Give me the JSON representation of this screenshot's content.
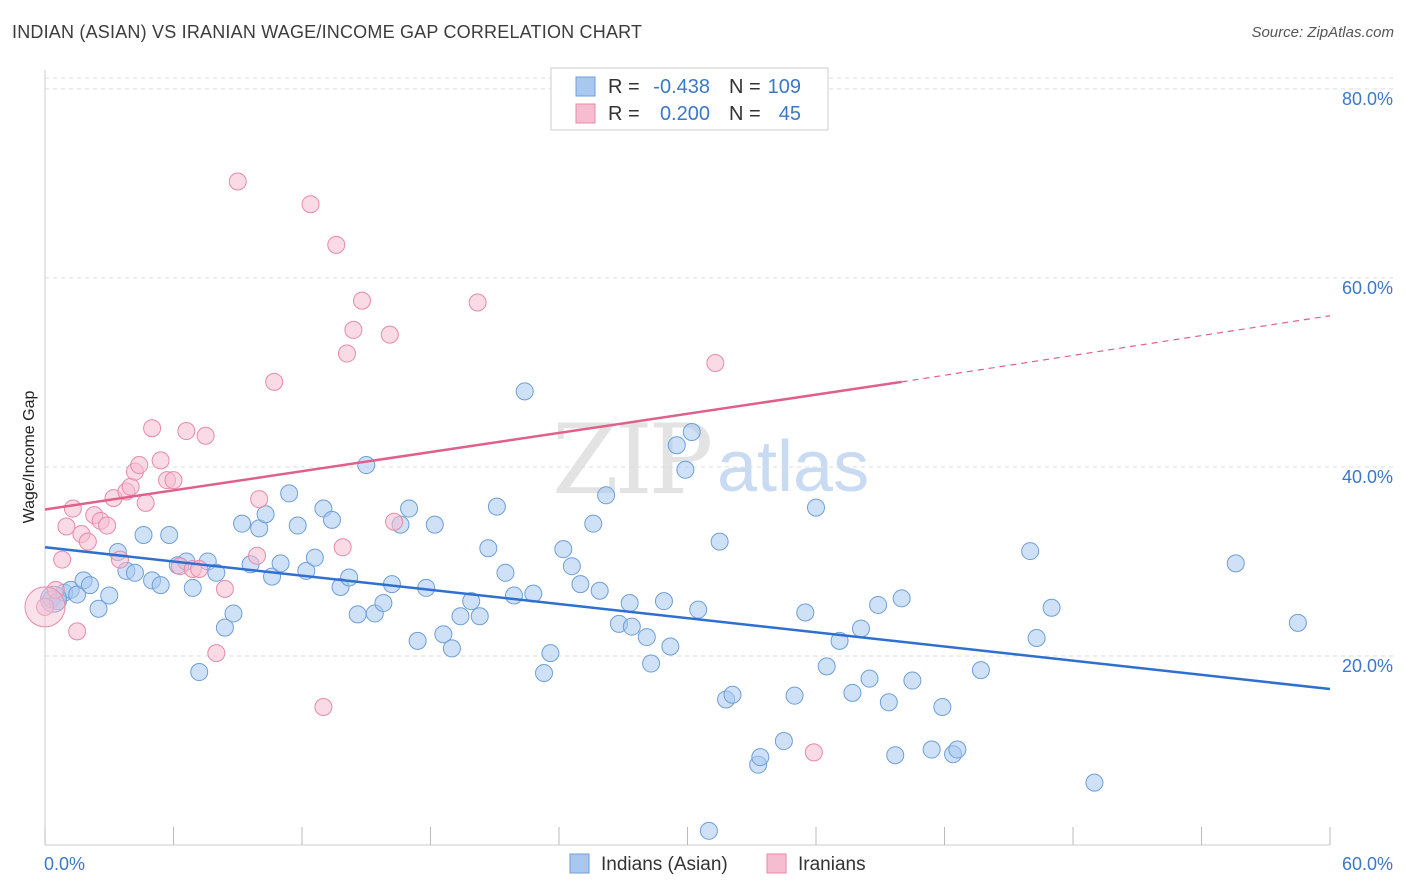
{
  "title": "INDIAN (ASIAN) VS IRANIAN WAGE/INCOME GAP CORRELATION CHART",
  "source": "Source: ZipAtlas.com",
  "watermark": {
    "zip": "ZIP",
    "atlas": "atlas"
  },
  "colors": {
    "blue_fill": "#a8c8f0",
    "blue_stroke": "#6e9fd8",
    "blue_line": "#2e6fd0",
    "pink_fill": "#f6bcd0",
    "pink_stroke": "#e88aa8",
    "pink_line": "#e0608a",
    "tick_text": "#3b78c8",
    "grid": "#dddddd"
  },
  "legend_top": {
    "rows": [
      {
        "r_label": "R =",
        "r_value": "-0.438",
        "n_label": "N =",
        "n_value": "109"
      },
      {
        "r_label": "R =",
        "r_value": "0.200",
        "n_label": "N =",
        "n_value": "45"
      }
    ]
  },
  "chart_data": {
    "type": "scatter",
    "xlabel": "",
    "ylabel": "Wage/Income Gap",
    "xlim": [
      0,
      60
    ],
    "ylim": [
      0,
      82
    ],
    "x_tick_labels": [
      "0.0%",
      "60.0%"
    ],
    "y_ticks": [
      20,
      40,
      60,
      80
    ],
    "y_tick_labels": [
      "20.0%",
      "40.0%",
      "60.0%",
      "80.0%"
    ],
    "grid": "horizontal dashed",
    "legend_position": "top-center",
    "series": [
      {
        "name": "Indians (Asian)",
        "color": "blue",
        "trend": {
          "x0": 0,
          "y0": 31.5,
          "x1": 60,
          "y1": 16.5
        },
        "points": [
          [
            0.3,
            26
          ],
          [
            0.6,
            25.8
          ],
          [
            0.9,
            26.7
          ],
          [
            1.2,
            27
          ],
          [
            1.5,
            26.5
          ],
          [
            1.8,
            28
          ],
          [
            2.1,
            27.5
          ],
          [
            2.5,
            25
          ],
          [
            3,
            26.4
          ],
          [
            3.4,
            31
          ],
          [
            3.8,
            29
          ],
          [
            4.2,
            28.8
          ],
          [
            4.6,
            32.8
          ],
          [
            5,
            28
          ],
          [
            5.4,
            27.5
          ],
          [
            5.8,
            32.8
          ],
          [
            6.2,
            29.6
          ],
          [
            6.6,
            30
          ],
          [
            6.9,
            27.2
          ],
          [
            7.2,
            18.3
          ],
          [
            7.6,
            30
          ],
          [
            8,
            28.8
          ],
          [
            8.4,
            23
          ],
          [
            8.8,
            24.5
          ],
          [
            9.2,
            34
          ],
          [
            9.6,
            29.7
          ],
          [
            10,
            33.5
          ],
          [
            10.3,
            35
          ],
          [
            10.6,
            28.4
          ],
          [
            11,
            29.8
          ],
          [
            11.4,
            37.2
          ],
          [
            11.8,
            33.8
          ],
          [
            12.2,
            29
          ],
          [
            12.6,
            30.4
          ],
          [
            13,
            35.6
          ],
          [
            13.4,
            34.4
          ],
          [
            13.8,
            27.3
          ],
          [
            14.2,
            28.3
          ],
          [
            14.6,
            24.4
          ],
          [
            15,
            40.2
          ],
          [
            15.4,
            24.5
          ],
          [
            15.8,
            25.6
          ],
          [
            16.2,
            27.6
          ],
          [
            16.6,
            33.9
          ],
          [
            17,
            35.6
          ],
          [
            17.4,
            21.6
          ],
          [
            17.8,
            27.2
          ],
          [
            18.2,
            33.9
          ],
          [
            18.6,
            22.3
          ],
          [
            19,
            20.8
          ],
          [
            19.4,
            24.2
          ],
          [
            19.9,
            25.8
          ],
          [
            20.3,
            24.2
          ],
          [
            20.7,
            31.4
          ],
          [
            21.1,
            35.8
          ],
          [
            21.5,
            28.8
          ],
          [
            21.9,
            26.4
          ],
          [
            22.4,
            48
          ],
          [
            22.8,
            26.6
          ],
          [
            23.3,
            18.2
          ],
          [
            23.6,
            20.3
          ],
          [
            24.2,
            31.3
          ],
          [
            24.6,
            29.5
          ],
          [
            25,
            27.6
          ],
          [
            25.6,
            34
          ],
          [
            25.9,
            26.9
          ],
          [
            26.2,
            37
          ],
          [
            26.8,
            23.4
          ],
          [
            27.3,
            25.6
          ],
          [
            27.4,
            23.1
          ],
          [
            28.1,
            22
          ],
          [
            28.3,
            19.2
          ],
          [
            28.9,
            25.8
          ],
          [
            29.2,
            21
          ],
          [
            29.5,
            42.3
          ],
          [
            29.9,
            39.7
          ],
          [
            30.2,
            43.7
          ],
          [
            30.5,
            24.9
          ],
          [
            31.5,
            32.1
          ],
          [
            31.8,
            15.4
          ],
          [
            32.1,
            15.9
          ],
          [
            33.3,
            8.5
          ],
          [
            33.4,
            9.3
          ],
          [
            35,
            15.8
          ],
          [
            35.5,
            24.6
          ],
          [
            36,
            35.7
          ],
          [
            36.5,
            18.9
          ],
          [
            37.1,
            21.6
          ],
          [
            37.7,
            16.1
          ],
          [
            38.1,
            22.9
          ],
          [
            38.5,
            17.6
          ],
          [
            38.9,
            25.4
          ],
          [
            39.4,
            15.1
          ],
          [
            39.7,
            9.5
          ],
          [
            40,
            26.1
          ],
          [
            40.5,
            17.4
          ],
          [
            41.4,
            10.1
          ],
          [
            41.9,
            14.6
          ],
          [
            42.4,
            9.6
          ],
          [
            42.6,
            10.1
          ],
          [
            43.7,
            18.5
          ],
          [
            46,
            31.1
          ],
          [
            46.3,
            21.9
          ],
          [
            47,
            25.1
          ],
          [
            49,
            6.6
          ],
          [
            55.6,
            29.8
          ],
          [
            58.5,
            23.5
          ],
          [
            31,
            1.5
          ],
          [
            34.5,
            11
          ]
        ]
      },
      {
        "name": "Iranians",
        "color": "pink",
        "trend": {
          "x0": 0,
          "y0": 35.5,
          "x1": 40,
          "y1": 49,
          "dash_to_x": 60,
          "dash_to_y": 56
        },
        "points": [
          [
            0,
            25.2
          ],
          [
            0.5,
            27
          ],
          [
            0.8,
            30.2
          ],
          [
            1,
            33.7
          ],
          [
            1.3,
            35.6
          ],
          [
            1.5,
            22.6
          ],
          [
            1.7,
            32.9
          ],
          [
            2,
            32.1
          ],
          [
            2.3,
            34.9
          ],
          [
            2.6,
            34.3
          ],
          [
            2.9,
            33.8
          ],
          [
            3.2,
            36.7
          ],
          [
            3.5,
            30.2
          ],
          [
            3.8,
            37.4
          ],
          [
            4,
            37.9
          ],
          [
            4.2,
            39.5
          ],
          [
            4.4,
            40.2
          ],
          [
            4.7,
            36.2
          ],
          [
            5,
            44.1
          ],
          [
            5.4,
            40.7
          ],
          [
            5.7,
            38.6
          ],
          [
            6,
            38.6
          ],
          [
            6.3,
            29.5
          ],
          [
            6.6,
            43.8
          ],
          [
            6.9,
            29.2
          ],
          [
            7.2,
            29.2
          ],
          [
            7.5,
            43.3
          ],
          [
            8,
            20.3
          ],
          [
            8.4,
            27.1
          ],
          [
            9,
            70.2
          ],
          [
            9.9,
            30.6
          ],
          [
            10,
            36.6
          ],
          [
            10.7,
            49
          ],
          [
            12.4,
            67.8
          ],
          [
            13,
            14.6
          ],
          [
            13.6,
            63.5
          ],
          [
            13.9,
            31.5
          ],
          [
            14.1,
            52
          ],
          [
            14.4,
            54.5
          ],
          [
            14.8,
            57.6
          ],
          [
            16.1,
            54
          ],
          [
            16.3,
            34.2
          ],
          [
            20.2,
            57.4
          ],
          [
            31.3,
            51
          ],
          [
            35.9,
            9.8
          ]
        ]
      }
    ]
  }
}
